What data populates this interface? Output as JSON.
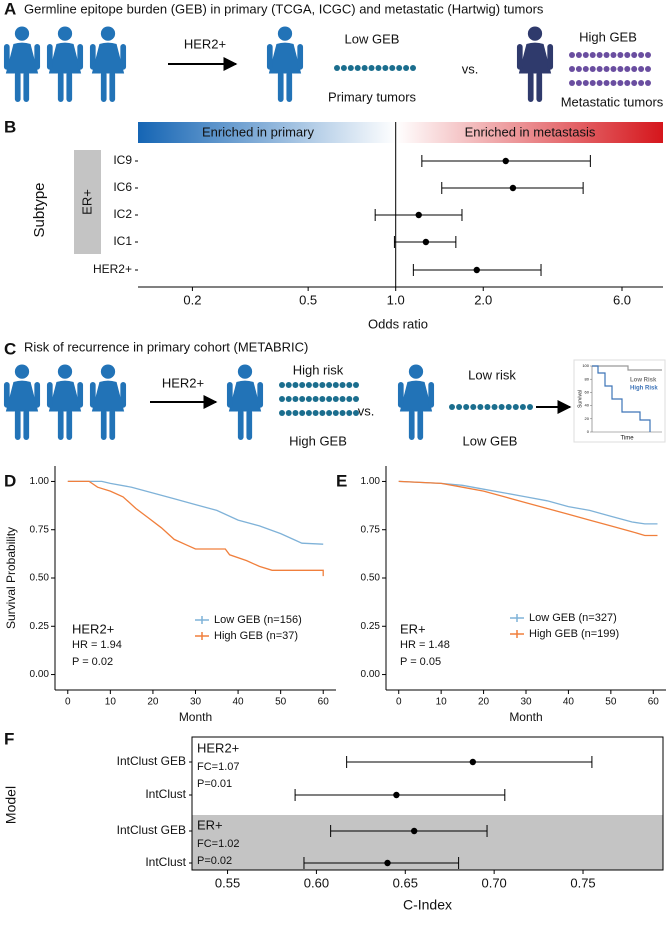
{
  "panel_labels": [
    "A",
    "B",
    "C",
    "D",
    "E",
    "F"
  ],
  "panel_a": {
    "title": "Germline epitope burden (GEB) in primary (TCGA, ICGC) and metastatic (Hartwig) tumors",
    "arrow_label": "HER2+",
    "low_label": "Low GEB",
    "primary_label": "Primary tumors",
    "vs": "vs.",
    "high_label": "High GEB",
    "metastatic_label": "Metastatic tumors"
  },
  "panel_c": {
    "title": "Risk of recurrence in primary cohort (METABRIC)",
    "arrow_label": "HER2+",
    "high_risk": "High risk",
    "high_geb": "High GEB",
    "vs": "vs.",
    "low_risk": "Low risk",
    "low_geb": "Low GEB",
    "inset": {
      "ylabel": "Survival",
      "xlabel": "Time",
      "legend": [
        "Low Risk",
        "High Risk"
      ],
      "yticks": [
        100,
        80,
        60,
        40,
        20,
        0
      ]
    }
  },
  "chart_data": [
    {
      "type": "forest",
      "xscale": "log",
      "header": [
        "Enriched in primary",
        "Enriched in metastasis"
      ],
      "group_label": "ER+",
      "ylabel": "Subtype",
      "xlabel": "Odds ratio",
      "categories": [
        "IC9",
        "IC6",
        "IC2",
        "IC1",
        "HER2+"
      ],
      "values": [
        2.39,
        2.53,
        1.2,
        1.27,
        1.9
      ],
      "lower": [
        1.23,
        1.44,
        0.85,
        0.99,
        1.15
      ],
      "upper": [
        4.67,
        4.41,
        1.69,
        1.61,
        3.16
      ],
      "reference_line": 1,
      "color": "#000000",
      "xlim": [
        0.13,
        8.3
      ],
      "xticks": [
        0.2,
        0.5,
        {
          "value": 1,
          "label": "1.0"
        },
        {
          "value": 2,
          "label": "2.0"
        },
        {
          "value": 6,
          "label": "6.0"
        }
      ]
    },
    {
      "type": "line",
      "annotation": [
        "HER2+",
        "HR = 1.94",
        "P = 0.02"
      ],
      "xlabel": "Month",
      "ylabel": "Survival Probability",
      "legend": "bottom right",
      "xlim": [
        -3,
        63
      ],
      "ylim": [
        -0.08,
        1.08
      ],
      "xticks": [
        0,
        10,
        20,
        30,
        40,
        50,
        60
      ],
      "yticks": [
        {
          "value": 0,
          "label": "0.00"
        },
        0.25,
        {
          "value": 0.5,
          "label": "0.50"
        },
        0.75,
        {
          "value": 1,
          "label": "1.00"
        }
      ],
      "series": [
        {
          "name": "Low GEB (n=156)",
          "color": "#7fb2d8",
          "x": [
            0,
            8,
            10,
            15,
            20,
            25,
            30,
            35,
            40,
            45,
            50,
            53,
            55,
            60
          ],
          "values": [
            1,
            1,
            0.99,
            0.97,
            0.94,
            0.91,
            0.88,
            0.85,
            0.8,
            0.77,
            0.73,
            0.7,
            0.68,
            0.675
          ]
        },
        {
          "name": "High GEB (n=37)",
          "color": "#f07f3c",
          "x": [
            0,
            5,
            7,
            10,
            13,
            16,
            19,
            22,
            25,
            28,
            30,
            37,
            38,
            42,
            45,
            48,
            60,
            60
          ],
          "values": [
            1,
            1,
            0.97,
            0.95,
            0.92,
            0.86,
            0.81,
            0.76,
            0.7,
            0.67,
            0.65,
            0.65,
            0.62,
            0.59,
            0.56,
            0.54,
            0.54,
            0.51
          ]
        }
      ]
    },
    {
      "type": "line",
      "annotation": [
        "ER+",
        "HR = 1.48",
        "P = 0.05"
      ],
      "xlabel": "Month",
      "legend": "bottom right",
      "xlim": [
        -3,
        63
      ],
      "ylim": [
        -0.08,
        1.08
      ],
      "xticks": [
        0,
        10,
        20,
        30,
        40,
        50,
        60
      ],
      "yticks": [
        {
          "value": 0,
          "label": "0.00"
        },
        0.25,
        {
          "value": 0.5,
          "label": "0.50"
        },
        0.75,
        {
          "value": 1,
          "label": "1.00"
        }
      ],
      "series": [
        {
          "name": "Low GEB (n=327)",
          "color": "#7fb2d8",
          "x": [
            0,
            10,
            15,
            20,
            25,
            30,
            35,
            40,
            45,
            50,
            55,
            58,
            61
          ],
          "values": [
            1,
            0.99,
            0.98,
            0.96,
            0.94,
            0.92,
            0.9,
            0.87,
            0.85,
            0.82,
            0.79,
            0.78,
            0.78
          ]
        },
        {
          "name": "High GEB (n=199)",
          "color": "#f07f3c",
          "x": [
            0,
            10,
            15,
            20,
            25,
            30,
            35,
            40,
            45,
            50,
            55,
            58,
            61
          ],
          "values": [
            1,
            0.99,
            0.97,
            0.95,
            0.92,
            0.89,
            0.86,
            0.83,
            0.8,
            0.77,
            0.74,
            0.72,
            0.72
          ]
        }
      ]
    },
    {
      "type": "forest",
      "xscale": "linear",
      "ylabel": "Model",
      "xlabel": "C-Index",
      "groups": [
        {
          "label": "HER2+",
          "notes": [
            "FC=1.07",
            "P=0.01"
          ]
        },
        {
          "label": "ER+",
          "notes": [
            "FC=1.02",
            "P=0.02"
          ]
        }
      ],
      "categories": [
        "IntClust GEB",
        "IntClust",
        "IntClust GEB",
        "IntClust"
      ],
      "values": [
        0.688,
        0.645,
        0.655,
        0.64
      ],
      "lower": [
        0.617,
        0.588,
        0.608,
        0.593
      ],
      "upper": [
        0.755,
        0.706,
        0.696,
        0.68
      ],
      "color": "#000000",
      "xlim": [
        0.53,
        0.795
      ],
      "xticks": [
        0.55,
        {
          "value": 0.6,
          "label": "0.60"
        },
        0.65,
        {
          "value": 0.7,
          "label": "0.70"
        },
        0.75
      ]
    }
  ]
}
